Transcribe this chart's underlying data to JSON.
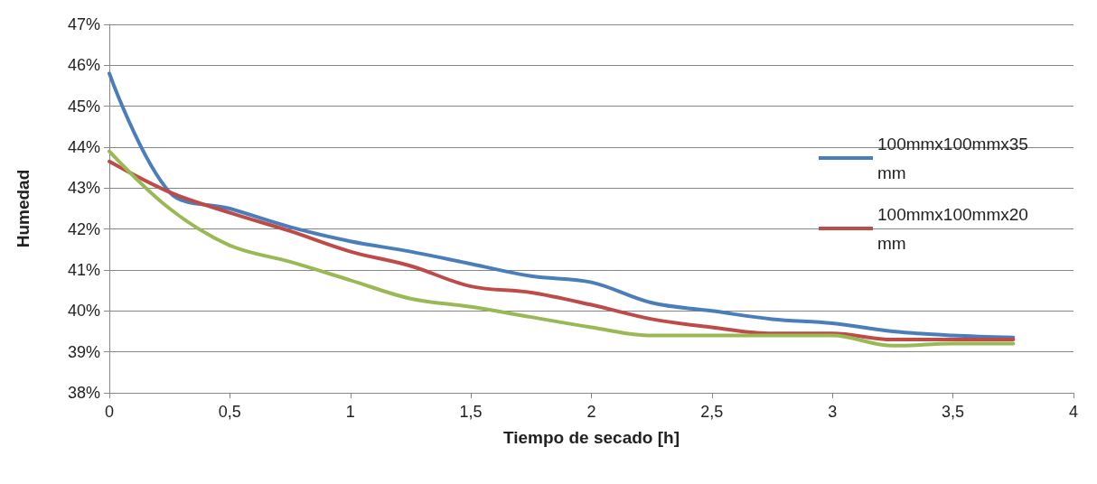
{
  "chart_data": {
    "type": "line",
    "xlabel": "Tiempo de secado [h]",
    "ylabel": "Humedad",
    "x": [
      0,
      0.25,
      0.5,
      0.75,
      1,
      1.25,
      1.5,
      1.75,
      2,
      2.25,
      2.5,
      2.75,
      3,
      3.25,
      3.5,
      3.75
    ],
    "series": [
      {
        "name": "100mmx100mmx35mm",
        "color": "#4a7ebb",
        "values": [
          45.8,
          42.9,
          42.5,
          42.05,
          41.7,
          41.45,
          41.15,
          40.85,
          40.7,
          40.2,
          40.0,
          39.8,
          39.7,
          39.5,
          39.4,
          39.35
        ]
      },
      {
        "name": "100mmx100mmx20mm",
        "color": "#be4b48",
        "values": [
          43.65,
          42.9,
          42.4,
          41.95,
          41.45,
          41.1,
          40.6,
          40.45,
          40.15,
          39.8,
          39.6,
          39.45,
          39.45,
          39.3,
          39.3,
          39.3
        ]
      },
      {
        "color": "#98b954",
        "values": [
          43.9,
          42.5,
          41.6,
          41.2,
          40.75,
          40.3,
          40.1,
          39.85,
          39.6,
          39.4,
          39.4,
          39.4,
          39.4,
          39.15,
          39.2,
          39.2
        ]
      }
    ],
    "xlim": [
      0,
      4
    ],
    "xticks": [
      0,
      {
        "value": 0.5,
        "label": "0,5"
      },
      1,
      {
        "value": 1.5,
        "label": "1,5"
      },
      2,
      {
        "value": 2.5,
        "label": "2,5"
      },
      3,
      {
        "value": 3.5,
        "label": "3,5"
      },
      4
    ],
    "ylim": [
      38,
      47
    ],
    "yticks": [
      {
        "value": 38,
        "label": "38%"
      },
      {
        "value": 39,
        "label": "39%"
      },
      {
        "value": 40,
        "label": "40%"
      },
      {
        "value": 41,
        "label": "41%"
      },
      {
        "value": 42,
        "label": "42%"
      },
      {
        "value": 43,
        "label": "43%"
      },
      {
        "value": 44,
        "label": "44%"
      },
      {
        "value": 45,
        "label": "45%"
      },
      {
        "value": 46,
        "label": "46%"
      },
      {
        "value": 47,
        "label": "47%"
      }
    ],
    "grid": "y",
    "legend": "right",
    "marker": "none",
    "line_style": "solid"
  }
}
